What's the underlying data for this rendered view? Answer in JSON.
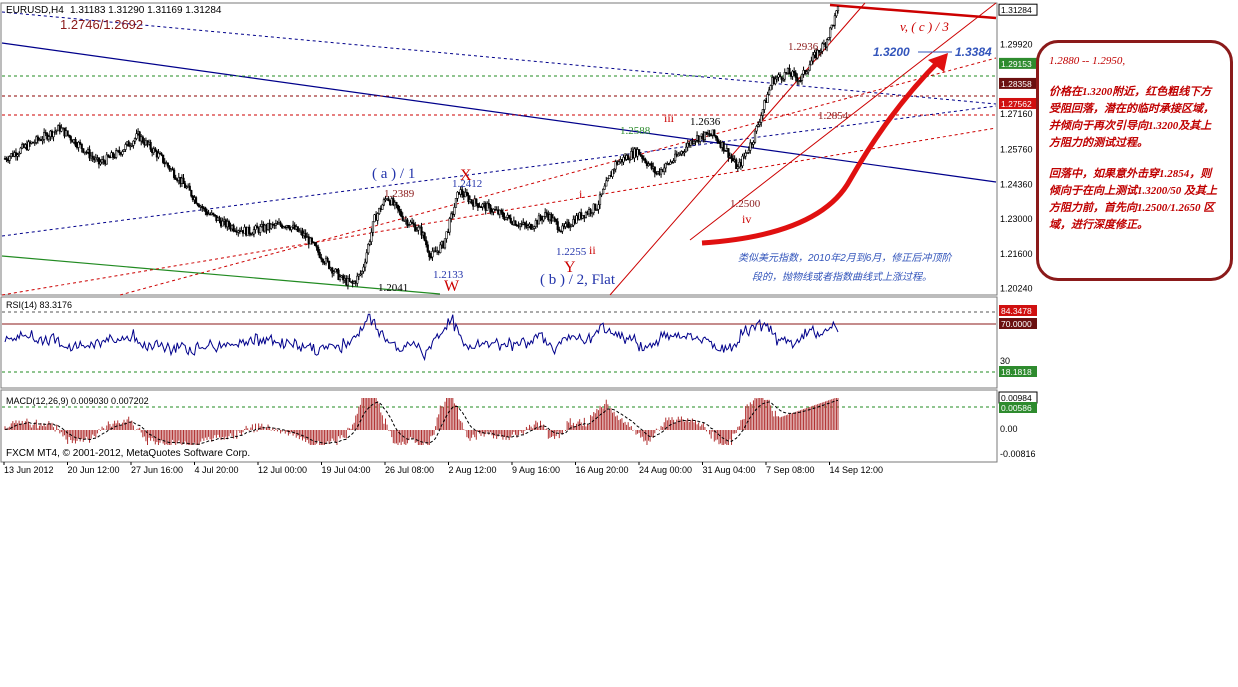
{
  "colors": {
    "bull": "#000000",
    "bear": "#000000",
    "blue_line": "#00008b",
    "red_line": "#cc0000",
    "green_line": "#228b22",
    "annotation": "#c00000",
    "label_blue": "#2233aa",
    "label_red": "#cc0000",
    "label_green": "#2b8b2b",
    "rsi_line": "#00008b",
    "macd_hist": "#b03030"
  },
  "header": {
    "symbol": "EURUSD,H4",
    "ohlc": "1.31183 1.31290 1.31169 1.31284"
  },
  "footer": {
    "copyright": "FXCM MT4, © 2001-2012, MetaQuotes Software Corp."
  },
  "chart_data": [
    {
      "type": "candlestick",
      "title": "",
      "y_ticks": [
        "1.29920",
        "1.27160",
        "1.25760",
        "1.24360",
        "1.23000",
        "1.21600",
        "1.20240"
      ],
      "price_boxes": [
        {
          "label": "1.31284",
          "style": "white"
        },
        {
          "label": "1.29153",
          "style": "green"
        },
        {
          "label": "1.28358",
          "style": "dark"
        },
        {
          "label": "1.27562",
          "style": "red"
        }
      ],
      "x_ticks": [
        "13 Jun 2012",
        "20 Jun 12:00",
        "27 Jun 16:00",
        "4 Jul 20:00",
        "12 Jul 00:00",
        "19 Jul 04:00",
        "26 Jul 08:00",
        "2 Aug 12:00",
        "9 Aug 16:00",
        "16 Aug 20:00",
        "24 Aug 00:00",
        "31 Aug 04:00",
        "7 Sep 08:00",
        "14 Sep 12:00"
      ],
      "top_left_label": "1.2746/1.2692",
      "waypoints": [
        [
          0,
          1.254
        ],
        [
          20,
          1.261
        ],
        [
          35,
          1.266
        ],
        [
          48,
          1.259
        ],
        [
          60,
          1.252
        ],
        [
          72,
          1.256
        ],
        [
          85,
          1.263
        ],
        [
          100,
          1.254
        ],
        [
          115,
          1.243
        ],
        [
          128,
          1.233
        ],
        [
          140,
          1.228
        ],
        [
          155,
          1.225
        ],
        [
          170,
          1.227
        ],
        [
          180,
          1.228
        ],
        [
          192,
          1.223
        ],
        [
          205,
          1.213
        ],
        [
          215,
          1.206
        ],
        [
          222,
          1.2041
        ],
        [
          228,
          1.209
        ],
        [
          236,
          1.23
        ],
        [
          244,
          1.2389
        ],
        [
          255,
          1.23
        ],
        [
          266,
          1.225
        ],
        [
          272,
          1.215
        ],
        [
          280,
          1.22
        ],
        [
          290,
          1.2412
        ],
        [
          298,
          1.237
        ],
        [
          310,
          1.234
        ],
        [
          322,
          1.23
        ],
        [
          334,
          1.2265
        ],
        [
          346,
          1.232
        ],
        [
          356,
          1.2255
        ],
        [
          364,
          1.23
        ],
        [
          378,
          1.235
        ],
        [
          390,
          1.252
        ],
        [
          404,
          1.257
        ],
        [
          416,
          1.248
        ],
        [
          428,
          1.254
        ],
        [
          440,
          1.262
        ],
        [
          452,
          1.2636
        ],
        [
          460,
          1.258
        ],
        [
          468,
          1.25
        ],
        [
          478,
          1.262
        ],
        [
          490,
          1.285
        ],
        [
          500,
          1.288
        ],
        [
          508,
          1.2854
        ],
        [
          516,
          1.2936
        ],
        [
          524,
          1.3
        ],
        [
          532,
          1.3128
        ]
      ],
      "levels": {
        "l1": "1.2389",
        "l2": "1.2412",
        "l3": "1.2133",
        "l4": "1.2041",
        "l5": "1.2255",
        "l6": "1.2588",
        "l7": "1.2636",
        "l8": "1.2500",
        "l9": "1.2936",
        "l10": "1.2854"
      },
      "wave_labels": {
        "a1": "( a ) / 1",
        "b2": "( b ) / 2, Flat",
        "X": "X",
        "W": "W",
        "Y": "Y",
        "i": "i",
        "ii": "ii",
        "iii": "iii",
        "iv": "iv",
        "v": "v,  ( c ) / 3"
      },
      "target": {
        "from": "1.3200",
        "to": "1.3384"
      },
      "note": "类似美元指数，2010年2月到6月，修正后冲顶阶段的，抛物线或者指数曲线式上涨过程。"
    },
    {
      "type": "line",
      "title": "RSI(14) 83.3176",
      "y_ticks": [
        "30"
      ],
      "price_boxes": [
        {
          "label": "84.3478",
          "style": "red"
        },
        {
          "label": "70.0000",
          "style": "dark"
        },
        {
          "label": "18.1818",
          "style": "green"
        }
      ]
    },
    {
      "type": "bar",
      "title": "MACD(12,26,9) 0.009030 0.007202",
      "y_ticks": [
        "0.00",
        "-0.00816"
      ],
      "price_boxes": [
        {
          "label": "0.00984",
          "style": "white"
        },
        {
          "label": "0.00586",
          "style": "green"
        }
      ]
    }
  ],
  "annotation_box": {
    "line1": "1.2880 -- 1.2950,",
    "line2": "价格在1.3200附近，红色粗线下方受阻回落，潜在的临时承接区域，并倾向于再次引导向1.3200及其上方阻力的测试过程。",
    "line3": "回落中，如果意外击穿1.2854，则倾向于在向上测试1.3200/50 及其上方阻力前，首先向1.2500/1.2650 区域，进行深度修正。"
  }
}
